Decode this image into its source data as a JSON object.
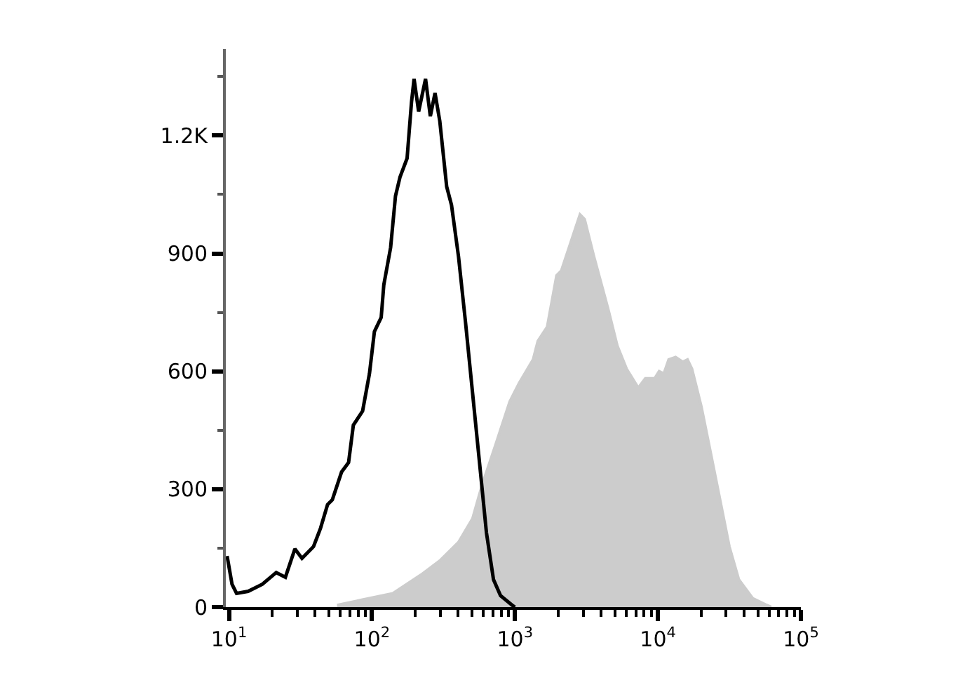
{
  "chart_data": {
    "type": "area",
    "xlim": [
      9.5,
      100000
    ],
    "ylim": [
      0,
      1420
    ],
    "xticks": [
      {
        "value": 10,
        "label": "10$^{1}$"
      },
      {
        "value": 100,
        "label": "10$^{2}$"
      },
      {
        "value": 1000,
        "label": "10$^{3}$"
      },
      {
        "value": 10000,
        "label": "10$^{4}$"
      },
      {
        "value": 100000,
        "label": "10$^{5}$"
      }
    ],
    "yticks": [
      0,
      300,
      600,
      900,
      {
        "value": 1200,
        "label": "1.2K"
      }
    ],
    "log": "x",
    "grid": false,
    "series": [
      {
        "color": "#cccccc",
        "x": [
          57,
          140,
          220,
          298,
          403,
          505,
          586,
          735,
          920,
          1070,
          1340,
          1446,
          1680,
          1955,
          2110,
          2450,
          2850,
          3070,
          3570,
          4470,
          5200,
          6040,
          7290,
          8170,
          9490,
          10200,
          11000,
          11900,
          13300,
          14900,
          16100,
          17300,
          20100,
          23400,
          27200,
          31600,
          36800,
          46100,
          57800,
          62200
        ],
        "values": [
          5,
          35,
          82,
          118,
          165,
          225,
          308,
          415,
          523,
          570,
          630,
          677,
          713,
          844,
          856,
          927,
          999,
          987,
          892,
          761,
          665,
          606,
          558,
          582,
          582,
          600,
          594,
          630,
          636,
          624,
          630,
          606,
          511,
          392,
          273,
          154,
          70,
          22,
          5,
          0
        ]
      },
      {
        "type": "line",
        "color": "#000000",
        "x": [
          9.7,
          10.5,
          11.3,
          13.6,
          17.1,
          21.4,
          24.8,
          28.9,
          32.4,
          39,
          43.7,
          48.9,
          52.8,
          61.3,
          68.6,
          74.1,
          86,
          96,
          104,
          116,
          121,
          135,
          146,
          157,
          176,
          189,
          197,
          212,
          237,
          256,
          276,
          298,
          333,
          360,
          403,
          451,
          505,
          565,
          632,
          708,
          793,
          955,
          1000
        ],
        "values": [
          130,
          58,
          35,
          40,
          58,
          88,
          76,
          148,
          124,
          154,
          201,
          261,
          273,
          344,
          368,
          463,
          499,
          594,
          701,
          737,
          820,
          915,
          1046,
          1094,
          1142,
          1285,
          1344,
          1261,
          1344,
          1249,
          1308,
          1237,
          1070,
          1023,
          892,
          725,
          546,
          368,
          189,
          70,
          29,
          5,
          0
        ]
      }
    ]
  }
}
